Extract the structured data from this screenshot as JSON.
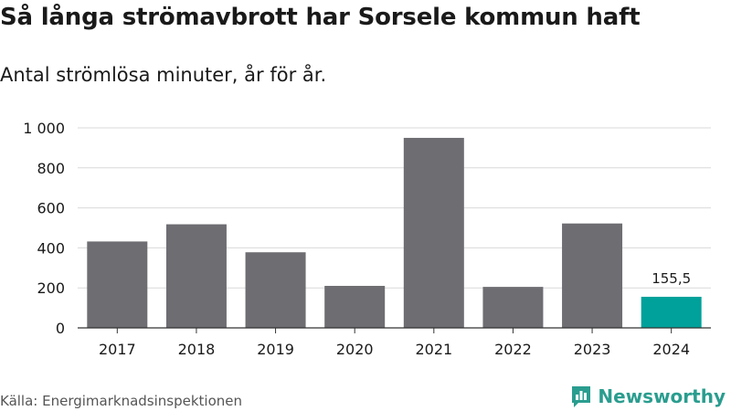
{
  "title": "Så långa strömavbrott har Sorsele kommun haft",
  "subtitle": "Antal strömlösa minuter, år för år.",
  "source": "Källa: Energimarknadsinspektionen",
  "brand": {
    "name": "Newsworthy",
    "icon": "bar-chart-logo-icon",
    "color": "#2a9d8f"
  },
  "colors": {
    "bar": "#6e6d72",
    "highlight": "#00a19a",
    "grid": "#d9d9d9",
    "axis": "#333333"
  },
  "chart_data": {
    "type": "bar",
    "title": "Så långa strömavbrott har Sorsele kommun haft",
    "subtitle": "Antal strömlösa minuter, år för år.",
    "xlabel": "",
    "ylabel": "",
    "categories": [
      "2017",
      "2018",
      "2019",
      "2020",
      "2021",
      "2022",
      "2023",
      "2024"
    ],
    "values": [
      432,
      518,
      378,
      210,
      950,
      205,
      522,
      155.5
    ],
    "ylim": [
      0,
      1000
    ],
    "yticks": [
      0,
      200,
      400,
      600,
      800,
      1000
    ],
    "ytick_labels": [
      "0",
      "200",
      "400",
      "600",
      "800",
      "1 000"
    ],
    "grid": true,
    "highlight_index": 7,
    "annotations": [
      {
        "index": 7,
        "text": "155,5"
      }
    ]
  }
}
